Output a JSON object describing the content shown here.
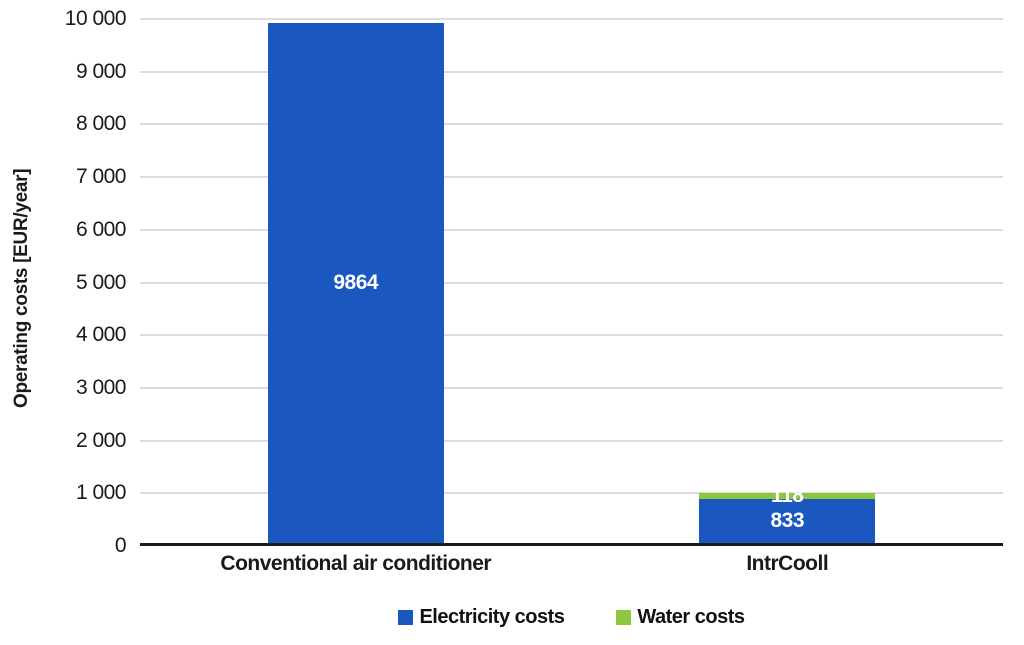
{
  "chart_data": {
    "type": "bar",
    "stacked": true,
    "title": "",
    "categories": [
      "Conventional air conditioner",
      "IntrCooll"
    ],
    "series": [
      {
        "name": "Electricity costs",
        "color": "#1a57be",
        "values": [
          9864,
          833
        ]
      },
      {
        "name": "Water costs",
        "color": "#8dc63f",
        "values": [
          0,
          118
        ]
      }
    ],
    "xlabel": "",
    "ylabel": "Operating costs [EUR/year]",
    "ylim": [
      0,
      10000
    ],
    "ytick_step": 1000,
    "ytick_format": "space-thousands",
    "grid": true,
    "gridline_color": "#dcdcdc",
    "axis_line_color": "#1a1a1a",
    "value_labels": true,
    "value_label_color": "#ffffff",
    "legend_position": "bottom",
    "bar_width_fraction": 0.204
  }
}
